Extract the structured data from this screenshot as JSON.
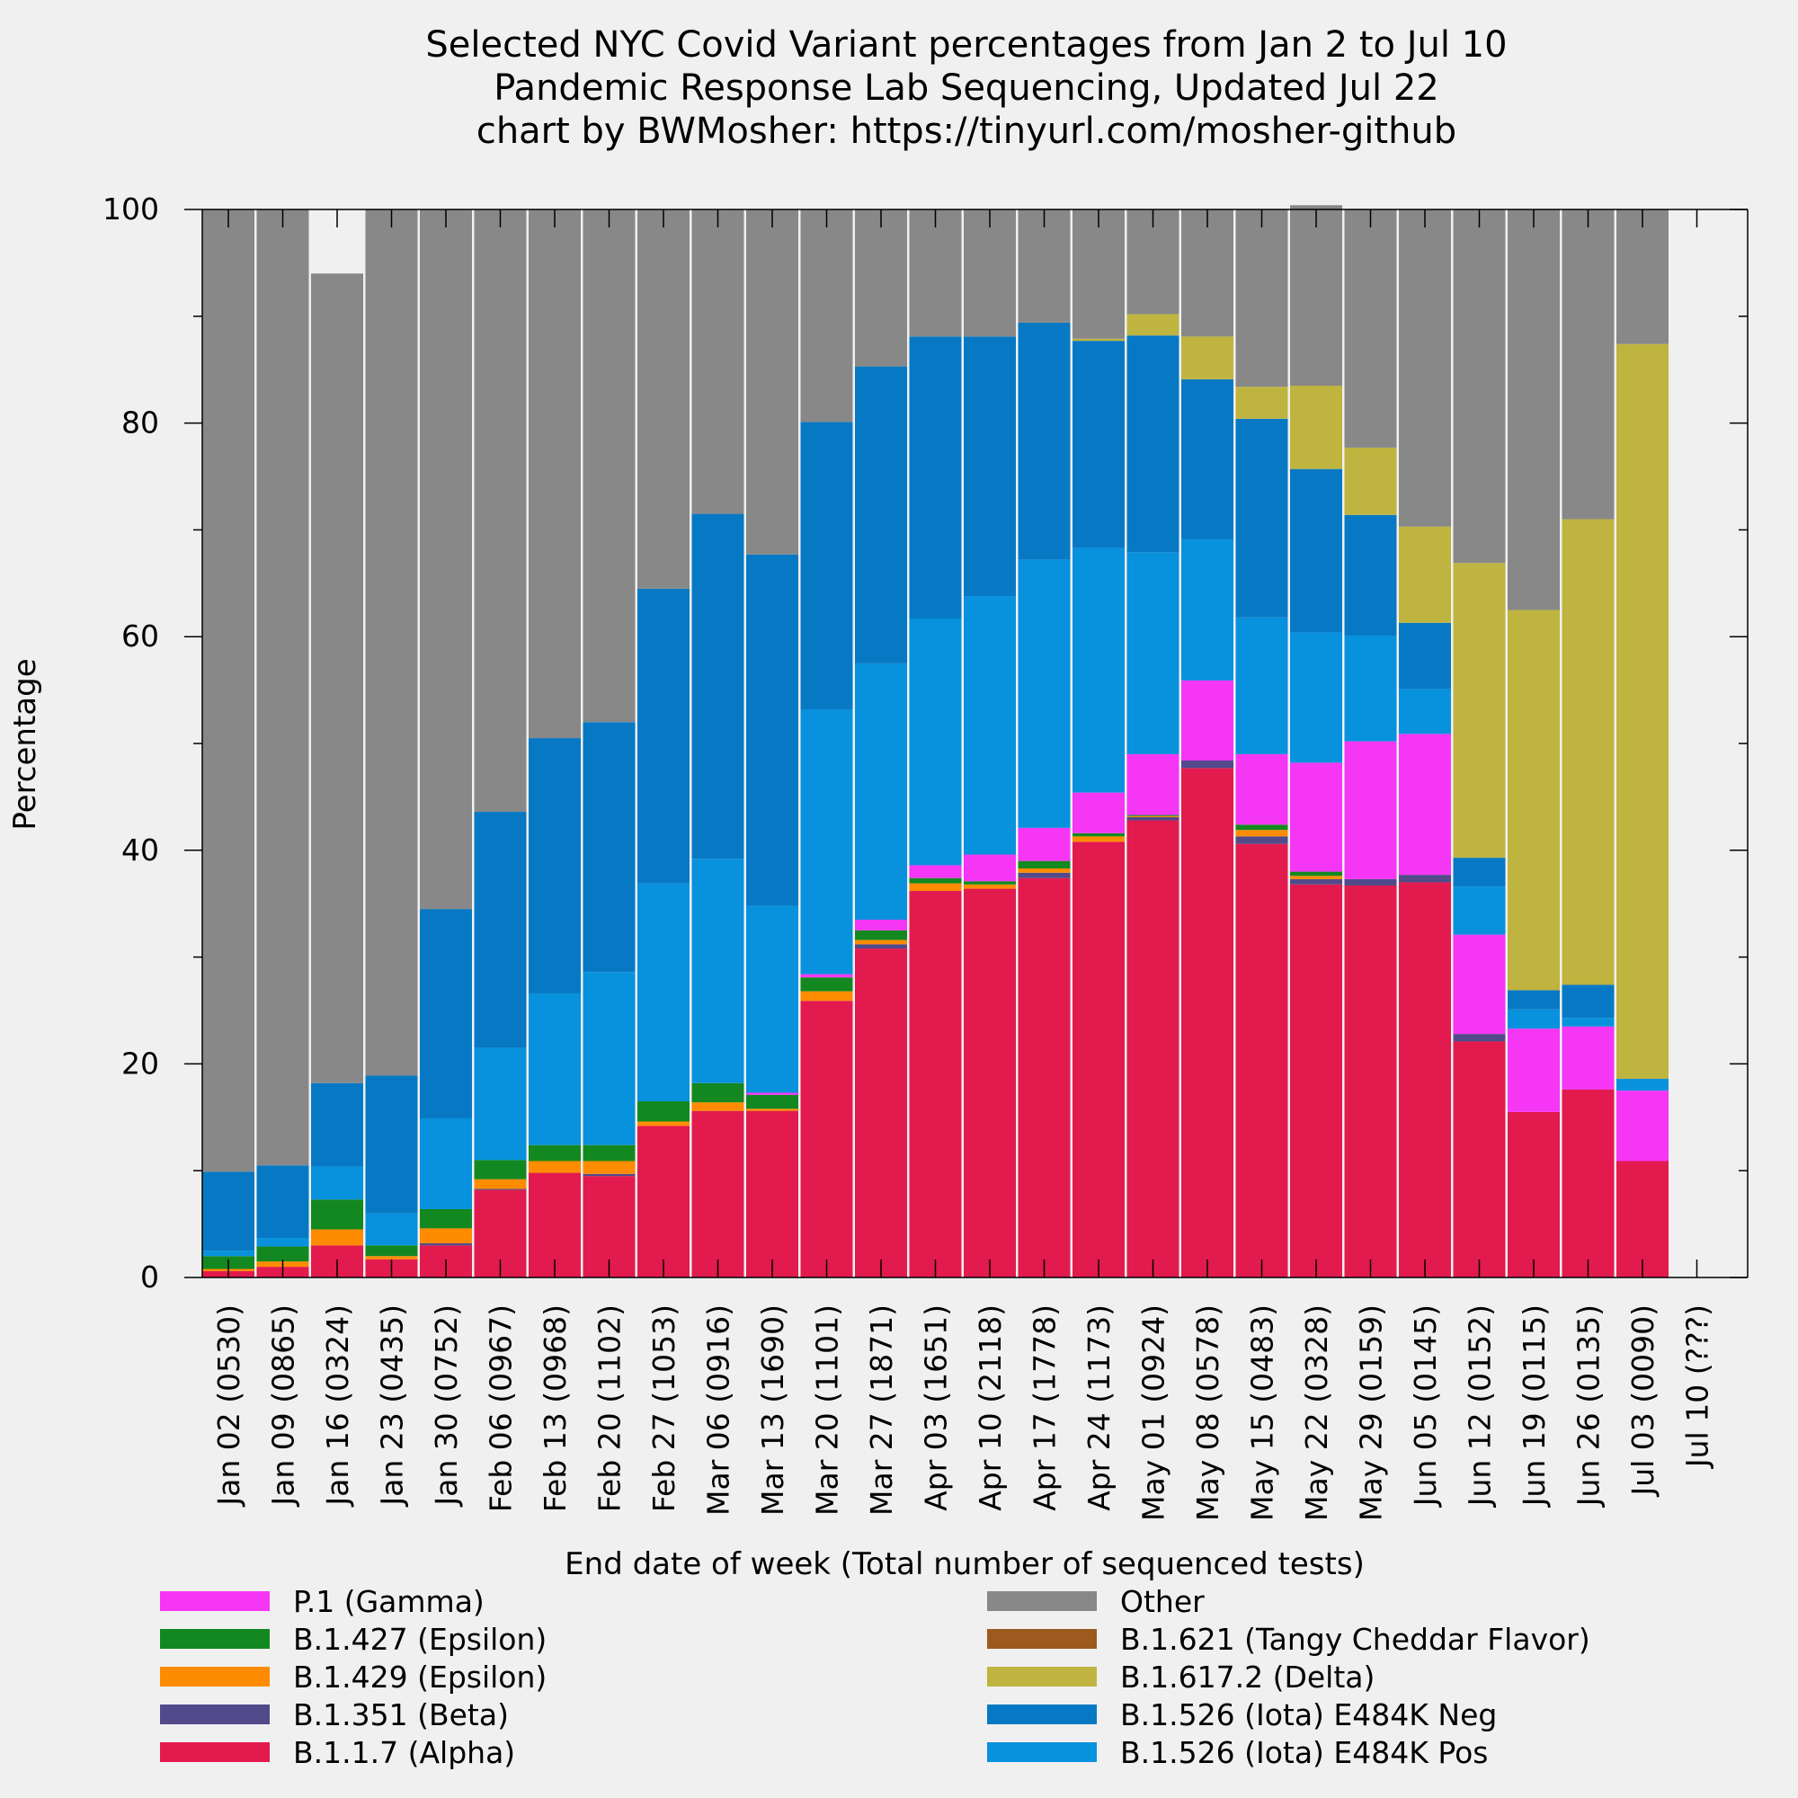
{
  "title_lines": [
    "Selected NYC Covid Variant percentages from Jan 2 to Jul 10",
    "Pandemic Response Lab Sequencing, Updated Jul 22",
    "chart by BWMosher: https://tinyurl.com/mosher-github"
  ],
  "chart_data": {
    "type": "bar",
    "stacked": true,
    "xlabel": "End date of week (Total number of sequenced tests)",
    "ylabel": "Percentage",
    "ylim": [
      0,
      100
    ],
    "yticks": [
      "0",
      "20",
      "40",
      "60",
      "80",
      "100"
    ],
    "categories": [
      "Jan 02 (0530)",
      "Jan 09 (0865)",
      "Jan 16 (0324)",
      "Jan 23 (0435)",
      "Jan 30 (0752)",
      "Feb 06 (0967)",
      "Feb 13 (0968)",
      "Feb 20 (1102)",
      "Feb 27 (1053)",
      "Mar 06 (0916)",
      "Mar 13 (1690)",
      "Mar 20 (1101)",
      "Mar 27 (1871)",
      "Apr 03 (1651)",
      "Apr 10 (2118)",
      "Apr 17 (1778)",
      "Apr 24 (1173)",
      "May 01 (0924)",
      "May 08 (0578)",
      "May 15 (0483)",
      "May 22 (0328)",
      "May 29 (0159)",
      "Jun 05 (0145)",
      "Jun 12 (0152)",
      "Jun 19 (0115)",
      "Jun 26 (0135)",
      "Jul 03 (0090)",
      "Jul 10 (???)"
    ],
    "series": [
      {
        "name": "B.1.1.7 (Alpha)",
        "color": "#e31a4d",
        "values": [
          0.6,
          1.0,
          3.0,
          1.7,
          3.0,
          8.2,
          9.8,
          9.5,
          14.2,
          15.6,
          15.6,
          25.9,
          30.8,
          36.2,
          36.4,
          37.4,
          40.8,
          42.8,
          47.7,
          40.6,
          36.8,
          36.7,
          37.0,
          22.1,
          15.5,
          17.6,
          10.9,
          0
        ]
      },
      {
        "name": "B.1.351 (Beta)",
        "color": "#524a8a",
        "values": [
          0,
          0,
          0,
          0,
          0.2,
          0.1,
          0,
          0.2,
          0,
          0,
          0,
          0,
          0.4,
          0,
          0,
          0.5,
          0,
          0.3,
          0.7,
          0.7,
          0.5,
          0.6,
          0.7,
          0.7,
          0,
          0,
          0,
          0
        ]
      },
      {
        "name": "B.1.429 (Epsilon)",
        "color": "#ff8c00",
        "values": [
          0.2,
          0.5,
          1.5,
          0.3,
          1.4,
          0.9,
          1.1,
          1.2,
          0.4,
          0.8,
          0.2,
          0.9,
          0.4,
          0.7,
          0.4,
          0.4,
          0.5,
          0.1,
          0,
          0.6,
          0.3,
          0,
          0,
          0,
          0,
          0,
          0,
          0
        ]
      },
      {
        "name": "B.1.427 (Epsilon)",
        "color": "#148820",
        "values": [
          1.2,
          1.4,
          2.8,
          1.0,
          1.8,
          1.8,
          1.5,
          1.5,
          1.9,
          1.8,
          1.3,
          1.3,
          0.9,
          0.5,
          0.3,
          0.7,
          0.3,
          0.1,
          0,
          0.5,
          0.4,
          0,
          0,
          0,
          0,
          0,
          0,
          0
        ]
      },
      {
        "name": "P.1 (Gamma)",
        "color": "#f536f5",
        "values": [
          0,
          0,
          0,
          0,
          0,
          0,
          0,
          0,
          0,
          0,
          0.2,
          0.3,
          1.0,
          1.2,
          2.5,
          3.1,
          3.8,
          5.7,
          7.5,
          6.6,
          10.2,
          12.9,
          13.2,
          9.3,
          7.8,
          5.9,
          6.6,
          0
        ]
      },
      {
        "name": "B.1.526 (Iota) E484K Pos",
        "color": "#0891dd",
        "values": [
          0.5,
          0.8,
          3.1,
          3.0,
          8.5,
          10.5,
          14.2,
          16.2,
          20.4,
          21.0,
          17.5,
          24.8,
          24.0,
          23.1,
          24.2,
          25.1,
          22.9,
          18.9,
          13.2,
          12.8,
          12.2,
          9.9,
          4.2,
          4.5,
          1.8,
          0.8,
          1.1,
          0
        ]
      },
      {
        "name": "B.1.526 (Iota) E484K Neg",
        "color": "#0779c4",
        "values": [
          7.4,
          6.8,
          7.8,
          12.9,
          19.6,
          22.1,
          23.9,
          23.4,
          27.6,
          32.3,
          32.9,
          26.9,
          27.8,
          26.4,
          24.3,
          22.2,
          19.4,
          20.3,
          15.0,
          18.6,
          15.3,
          11.3,
          6.2,
          2.7,
          1.8,
          3.1,
          0,
          0
        ]
      },
      {
        "name": "B.1.617.2 (Delta)",
        "color": "#bfb440",
        "values": [
          0,
          0,
          0,
          0,
          0,
          0,
          0,
          0,
          0,
          0,
          0,
          0,
          0,
          0,
          0,
          0,
          0.2,
          2.0,
          4.0,
          3.0,
          7.8,
          6.3,
          9.0,
          27.6,
          35.6,
          43.6,
          68.8,
          0
        ]
      },
      {
        "name": "B.1.621 (Tangy Cheddar Flavor)",
        "color": "#9c5a1e",
        "values": [
          0,
          0,
          0,
          0,
          0,
          0,
          0,
          0,
          0,
          0,
          0,
          0,
          0,
          0,
          0,
          0,
          0,
          0,
          0,
          0,
          0,
          0,
          0,
          0,
          0,
          0,
          0,
          0
        ]
      },
      {
        "name": "Other",
        "color": "#888888",
        "values": [
          90.1,
          89.5,
          75.8,
          81.1,
          65.5,
          56.4,
          49.5,
          48.0,
          35.5,
          28.5,
          32.3,
          19.9,
          14.7,
          11.9,
          11.9,
          10.6,
          12.1,
          9.8,
          11.9,
          16.6,
          16.9,
          22.3,
          29.7,
          33.1,
          37.5,
          29.0,
          12.6,
          0
        ]
      }
    ],
    "legend": {
      "placement": "below",
      "left": [
        "P.1 (Gamma)",
        "B.1.427 (Epsilon)",
        "B.1.429 (Epsilon)",
        "B.1.351 (Beta)",
        "B.1.1.7 (Alpha)"
      ],
      "right": [
        "Other",
        "B.1.621 (Tangy Cheddar Flavor)",
        "B.1.617.2 (Delta)",
        "B.1.526 (Iota) E484K Neg",
        "B.1.526 (Iota) E484K Pos"
      ]
    }
  }
}
